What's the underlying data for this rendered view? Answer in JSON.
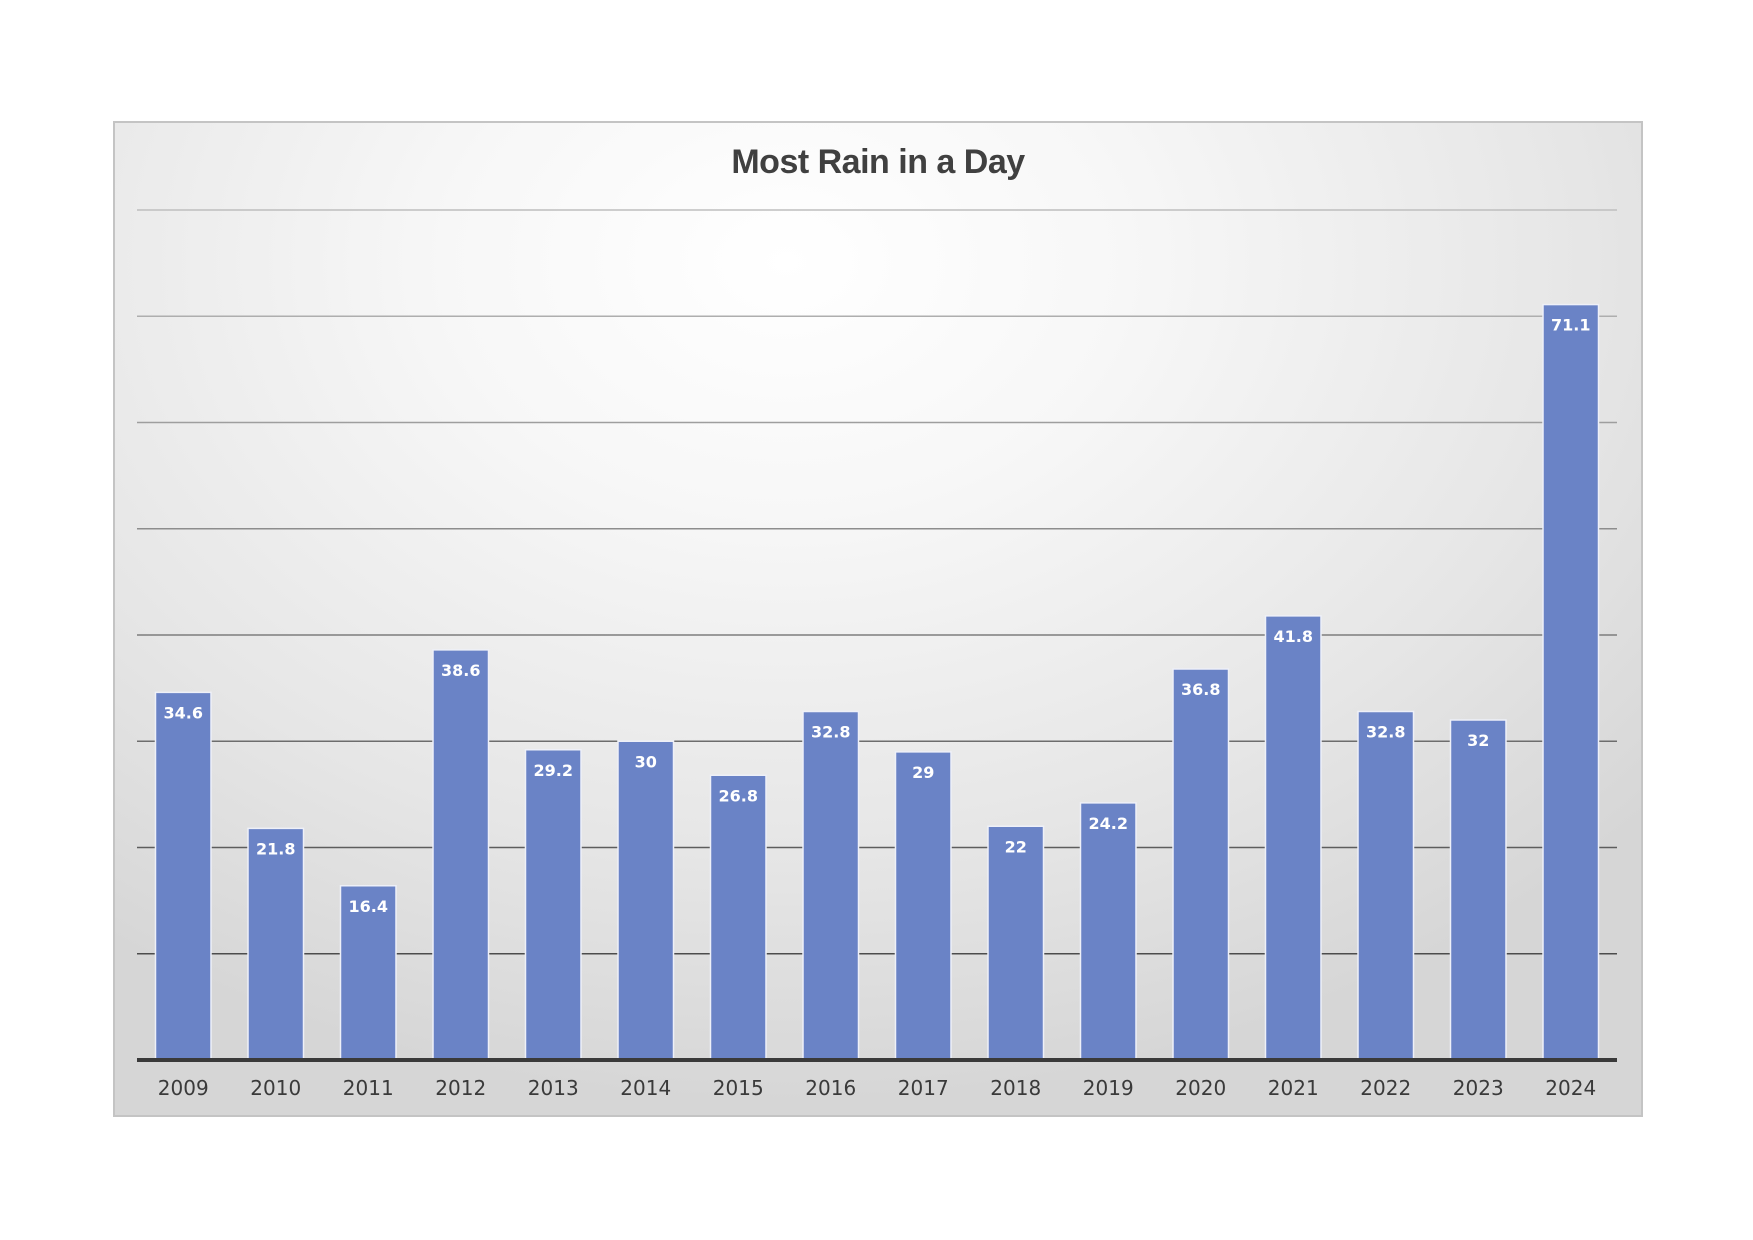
{
  "chart_data": {
    "type": "bar",
    "title": "Most Rain in a Day",
    "xlabel": "",
    "ylabel": "",
    "categories": [
      "2009",
      "2010",
      "2011",
      "2012",
      "2013",
      "2014",
      "2015",
      "2016",
      "2017",
      "2018",
      "2019",
      "2020",
      "2021",
      "2022",
      "2023",
      "2024"
    ],
    "values": [
      34.6,
      21.8,
      16.4,
      38.6,
      29.2,
      30,
      26.8,
      32.8,
      29,
      22,
      24.2,
      36.8,
      41.8,
      32.8,
      32,
      71.1
    ],
    "ylim": [
      0,
      80
    ],
    "y_gridline_step": 10,
    "grid": true,
    "legend": "none",
    "data_labels": "inside-end",
    "colors": {
      "bar": "#6a83c6",
      "title": "#404040",
      "axis_text": "#3a3a3a",
      "baseline": "#3a3a3a"
    }
  }
}
